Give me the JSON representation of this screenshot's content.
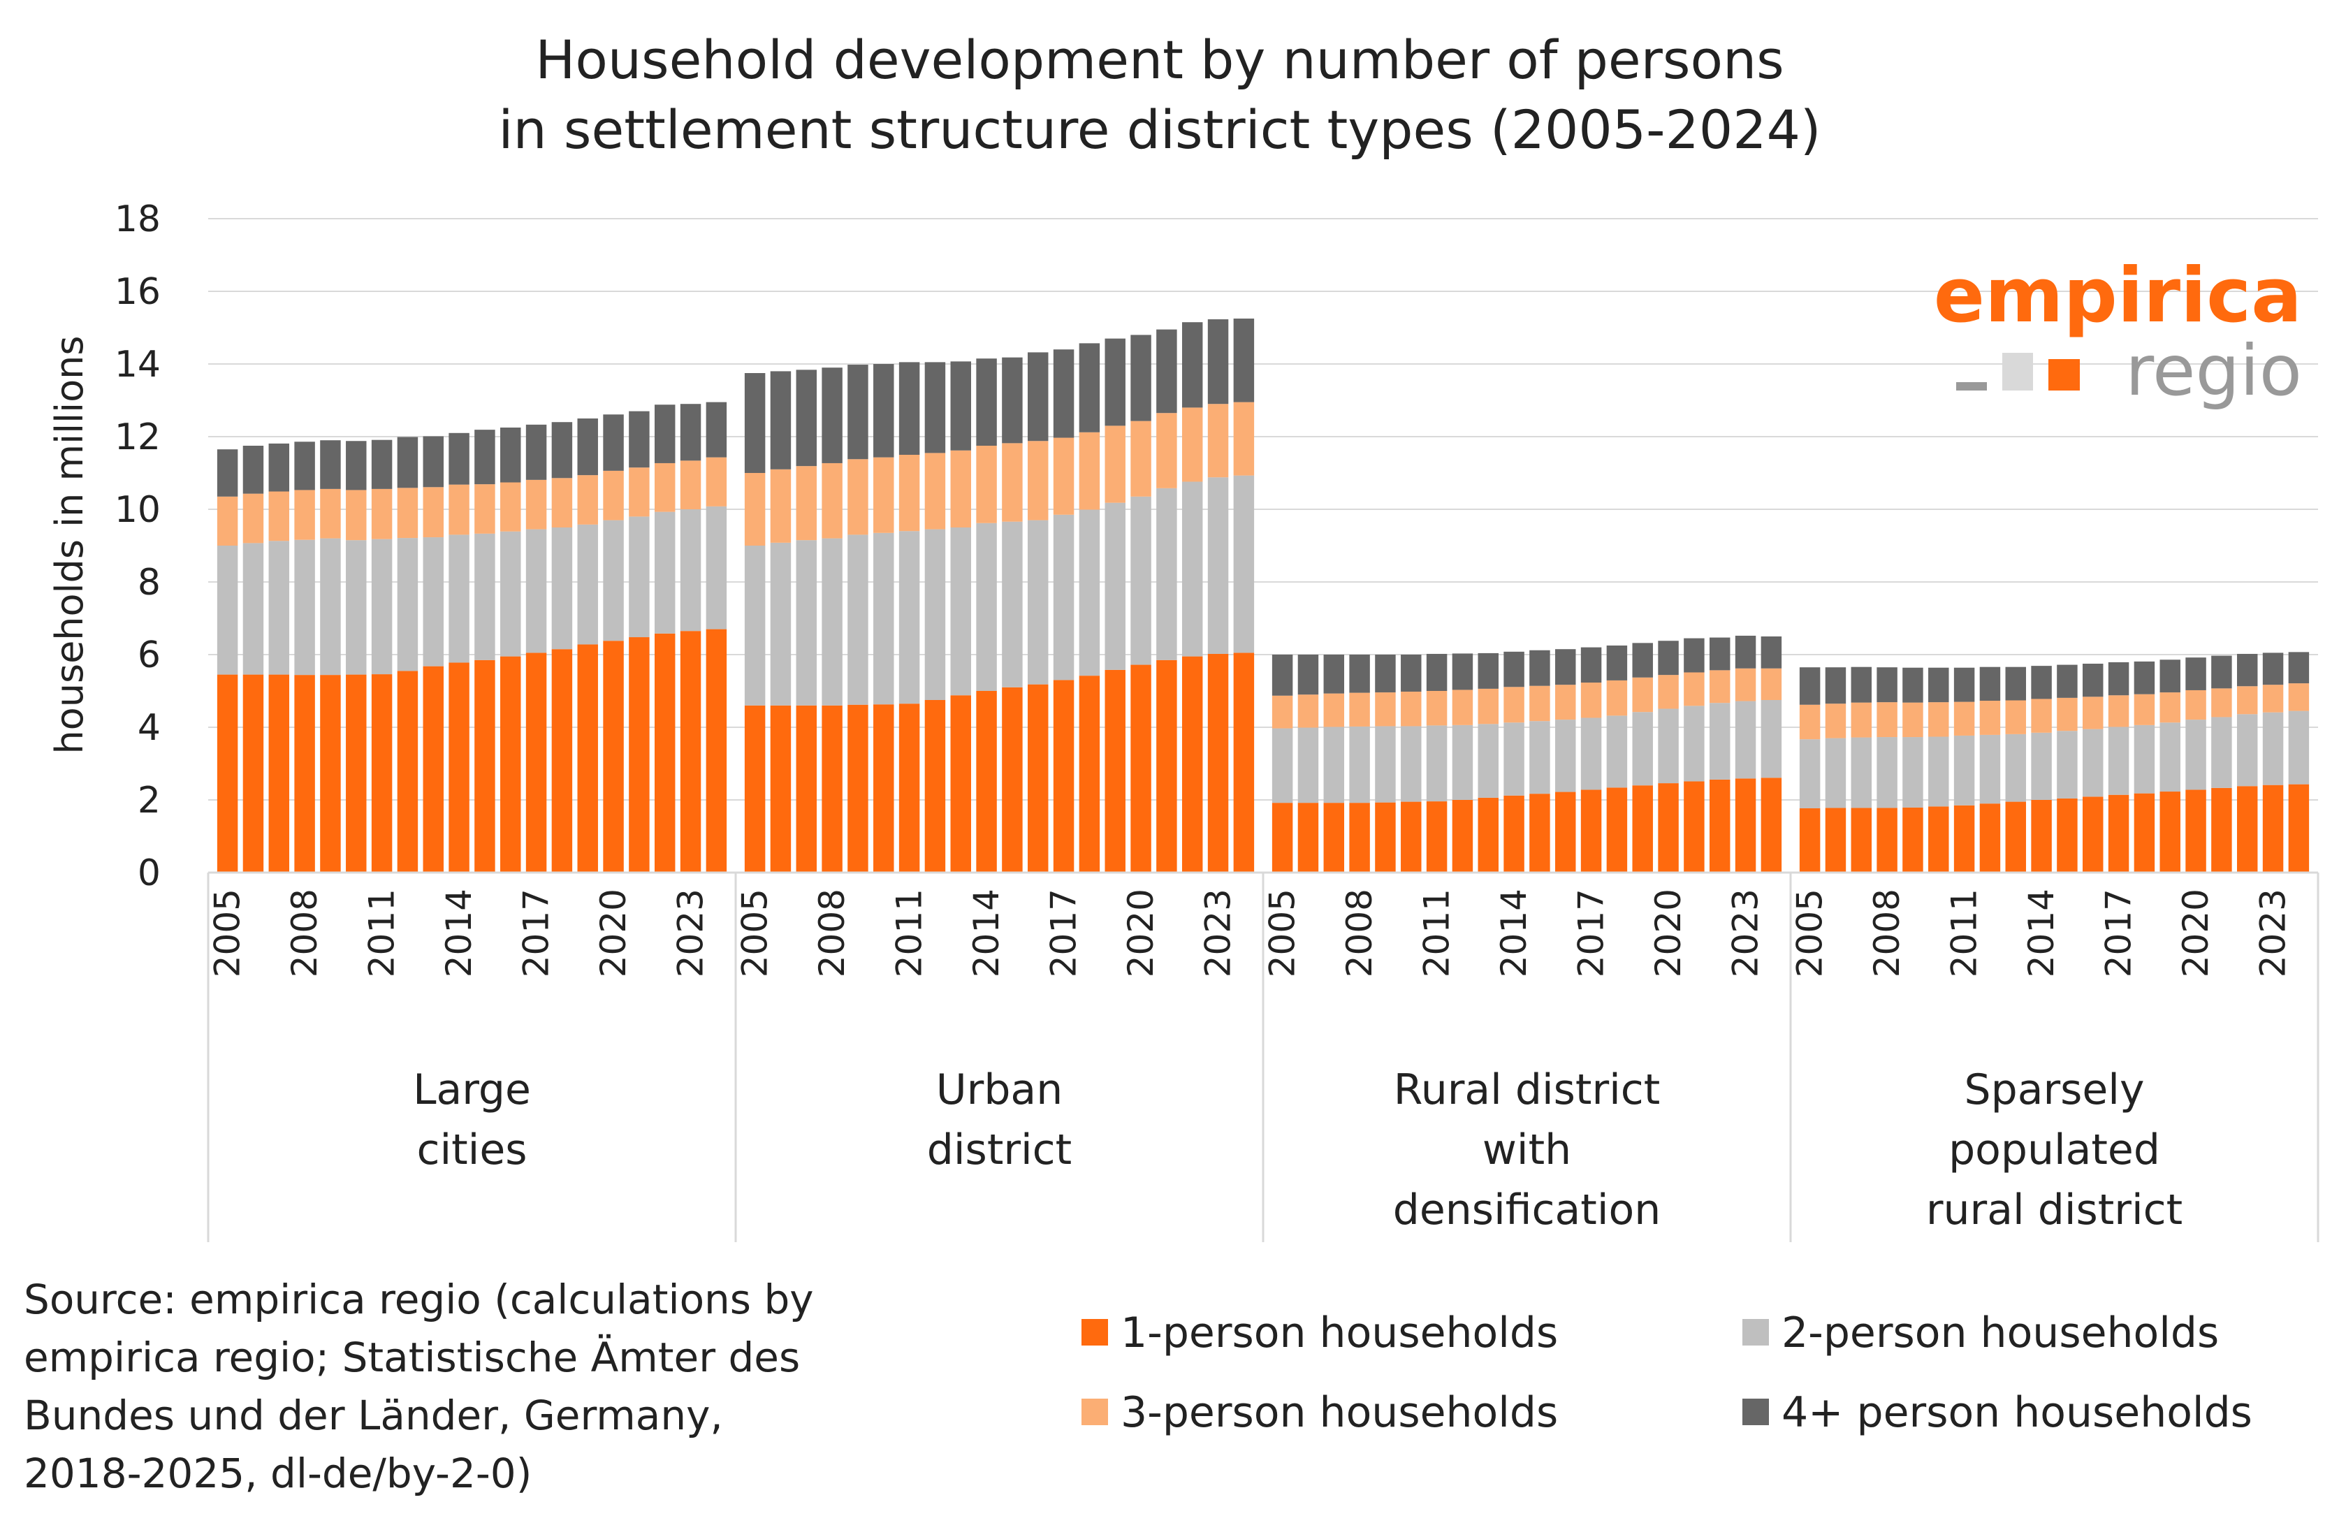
{
  "chart_data": {
    "type": "bar",
    "stacked": true,
    "title": [
      "Household development by number of persons",
      "in settlement structure district types (2005-2024)"
    ],
    "ylabel": "households in millions",
    "ylim": [
      0,
      18
    ],
    "yticks": [
      0,
      2,
      4,
      6,
      8,
      10,
      12,
      14,
      16,
      18
    ],
    "grid": true,
    "legend_position": "bottom-right",
    "years": [
      2005,
      2006,
      2007,
      2008,
      2009,
      2010,
      2011,
      2012,
      2013,
      2014,
      2015,
      2016,
      2017,
      2018,
      2019,
      2020,
      2021,
      2022,
      2023,
      2024
    ],
    "year_tick_labels": [
      "2005",
      "2008",
      "2011",
      "2014",
      "2017",
      "2020",
      "2023"
    ],
    "groups": [
      {
        "label": [
          "Large",
          "cities"
        ],
        "series": [
          {
            "name": "1-person households",
            "values": [
              5.45,
              5.45,
              5.45,
              5.44,
              5.44,
              5.45,
              5.46,
              5.55,
              5.68,
              5.78,
              5.85,
              5.95,
              6.05,
              6.15,
              6.28,
              6.38,
              6.48,
              6.58,
              6.65,
              6.7
            ]
          },
          {
            "name": "2-person households",
            "values": [
              3.55,
              3.62,
              3.68,
              3.72,
              3.76,
              3.7,
              3.72,
              3.66,
              3.55,
              3.52,
              3.48,
              3.44,
              3.4,
              3.35,
              3.3,
              3.32,
              3.32,
              3.35,
              3.35,
              3.38
            ]
          },
          {
            "name": "3-person households",
            "values": [
              1.35,
              1.36,
              1.36,
              1.37,
              1.36,
              1.38,
              1.38,
              1.38,
              1.38,
              1.38,
              1.36,
              1.35,
              1.36,
              1.36,
              1.36,
              1.36,
              1.35,
              1.34,
              1.34,
              1.35
            ]
          },
          {
            "name": "4+ person households",
            "values": [
              1.3,
              1.32,
              1.32,
              1.33,
              1.34,
              1.35,
              1.35,
              1.4,
              1.4,
              1.42,
              1.5,
              1.51,
              1.52,
              1.54,
              1.56,
              1.55,
              1.55,
              1.61,
              1.56,
              1.52
            ]
          }
        ]
      },
      {
        "label": [
          "Urban",
          "district"
        ],
        "series": [
          {
            "name": "1-person households",
            "values": [
              4.6,
              4.6,
              4.6,
              4.6,
              4.62,
              4.63,
              4.65,
              4.75,
              4.88,
              5.0,
              5.1,
              5.18,
              5.3,
              5.42,
              5.58,
              5.72,
              5.85,
              5.95,
              6.02,
              6.05
            ]
          },
          {
            "name": "2-person households",
            "values": [
              4.4,
              4.48,
              4.55,
              4.6,
              4.68,
              4.72,
              4.75,
              4.7,
              4.62,
              4.62,
              4.56,
              4.52,
              4.55,
              4.57,
              4.6,
              4.63,
              4.73,
              4.81,
              4.86,
              4.88
            ]
          },
          {
            "name": "3-person households",
            "values": [
              2.0,
              2.02,
              2.04,
              2.07,
              2.08,
              2.08,
              2.1,
              2.1,
              2.12,
              2.13,
              2.16,
              2.18,
              2.12,
              2.13,
              2.12,
              2.08,
              2.07,
              2.04,
              2.02,
              2.02
            ]
          },
          {
            "name": "4+ person households",
            "values": [
              2.75,
              2.7,
              2.65,
              2.63,
              2.6,
              2.57,
              2.55,
              2.5,
              2.45,
              2.4,
              2.36,
              2.44,
              2.43,
              2.45,
              2.4,
              2.37,
              2.3,
              2.35,
              2.33,
              2.3
            ]
          }
        ]
      },
      {
        "label": [
          "Rural district",
          "with",
          "densification"
        ],
        "series": [
          {
            "name": "1-person households",
            "values": [
              1.92,
              1.92,
              1.92,
              1.92,
              1.93,
              1.95,
              1.96,
              2.0,
              2.06,
              2.12,
              2.17,
              2.22,
              2.28,
              2.34,
              2.4,
              2.46,
              2.51,
              2.56,
              2.59,
              2.61
            ]
          },
          {
            "name": "2-person households",
            "values": [
              2.05,
              2.07,
              2.09,
              2.1,
              2.1,
              2.08,
              2.09,
              2.06,
              2.03,
              2.01,
              2.0,
              1.99,
              1.98,
              1.98,
              2.02,
              2.05,
              2.08,
              2.11,
              2.13,
              2.14
            ]
          },
          {
            "name": "3-person households",
            "values": [
              0.9,
              0.91,
              0.92,
              0.93,
              0.93,
              0.95,
              0.95,
              0.97,
              0.97,
              0.98,
              0.97,
              0.96,
              0.97,
              0.97,
              0.95,
              0.93,
              0.92,
              0.9,
              0.9,
              0.87
            ]
          },
          {
            "name": "4+ person households",
            "values": [
              1.13,
              1.1,
              1.07,
              1.05,
              1.04,
              1.02,
              1.02,
              1.0,
              0.98,
              0.97,
              0.98,
              0.98,
              0.97,
              0.96,
              0.95,
              0.94,
              0.94,
              0.9,
              0.9,
              0.88
            ]
          }
        ]
      },
      {
        "label": [
          "Sparsely",
          "populated",
          "rural district"
        ],
        "series": [
          {
            "name": "1-person households",
            "values": [
              1.77,
              1.78,
              1.78,
              1.78,
              1.79,
              1.82,
              1.85,
              1.9,
              1.95,
              2.0,
              2.04,
              2.09,
              2.14,
              2.18,
              2.23,
              2.28,
              2.33,
              2.38,
              2.41,
              2.43
            ]
          },
          {
            "name": "2-person households",
            "values": [
              1.9,
              1.92,
              1.94,
              1.95,
              1.94,
              1.92,
              1.92,
              1.89,
              1.86,
              1.85,
              1.86,
              1.86,
              1.87,
              1.88,
              1.9,
              1.93,
              1.95,
              1.98,
              2.0,
              2.02
            ]
          },
          {
            "name": "3-person households",
            "values": [
              0.95,
              0.95,
              0.96,
              0.96,
              0.95,
              0.95,
              0.93,
              0.94,
              0.93,
              0.93,
              0.91,
              0.89,
              0.87,
              0.85,
              0.83,
              0.81,
              0.79,
              0.77,
              0.76,
              0.76
            ]
          },
          {
            "name": "4+ person households",
            "values": [
              1.03,
              1.0,
              0.98,
              0.96,
              0.96,
              0.95,
              0.94,
              0.93,
              0.92,
              0.91,
              0.91,
              0.91,
              0.91,
              0.9,
              0.9,
              0.9,
              0.9,
              0.89,
              0.88,
              0.86
            ]
          }
        ]
      }
    ],
    "legend": [
      {
        "name": "1-person households",
        "color": "#ff6a0e"
      },
      {
        "name": "2-person households",
        "color": "#bfbfbf"
      },
      {
        "name": "3-person households",
        "color": "#fbae74"
      },
      {
        "name": "4+ person households",
        "color": "#666666"
      }
    ],
    "source": [
      "Source: empirica regio (calculations by",
      "empirica regio; Statistische Ämter des",
      "Bundes und der Länder, Germany,",
      "2018-2025, dl-de/by-2-0)"
    ]
  },
  "logo": {
    "text_main": "empirica",
    "text_sub": "regio",
    "color_main": "#ff6a0e",
    "color_sub": "#999999"
  }
}
